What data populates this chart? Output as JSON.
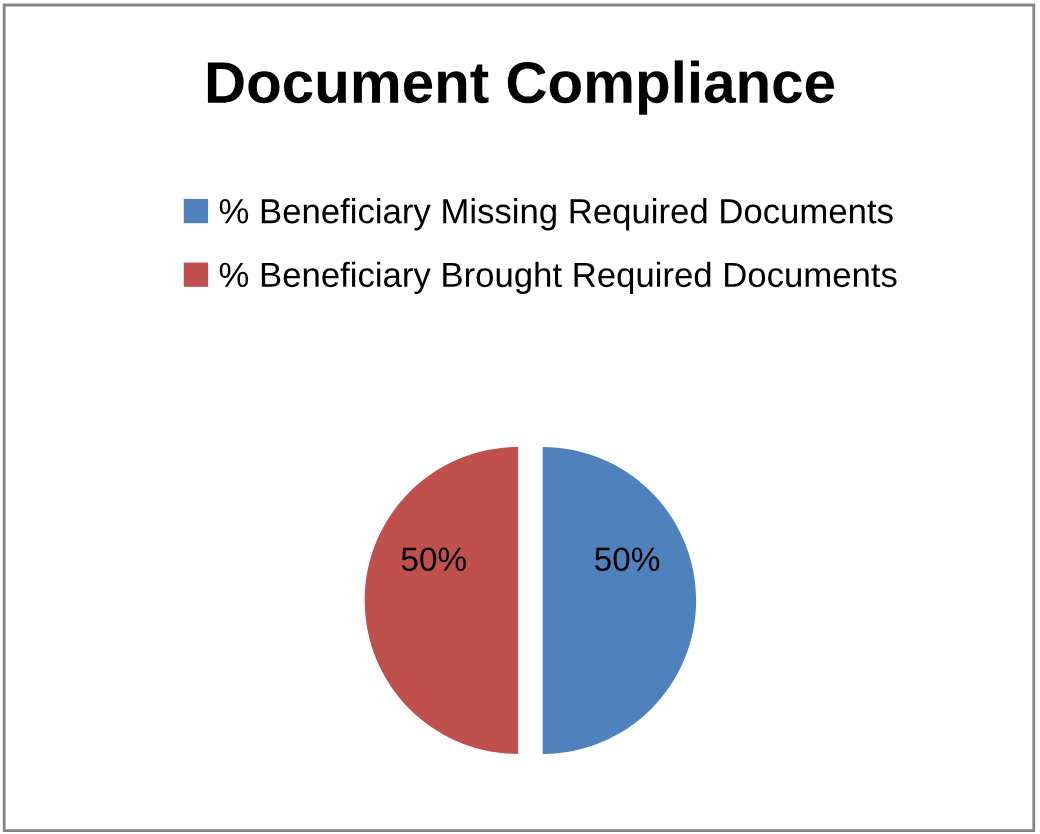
{
  "chart_data": {
    "type": "pie",
    "title": "Document Compliance",
    "categories": [
      "% Beneficiary Missing Required Documents",
      "% Beneficiary Brought Required Documents"
    ],
    "values": [
      50,
      50
    ],
    "colors": [
      "#4f81bd",
      "#c0504d"
    ],
    "value_labels": [
      "50%",
      "50%"
    ],
    "legend": "top"
  }
}
